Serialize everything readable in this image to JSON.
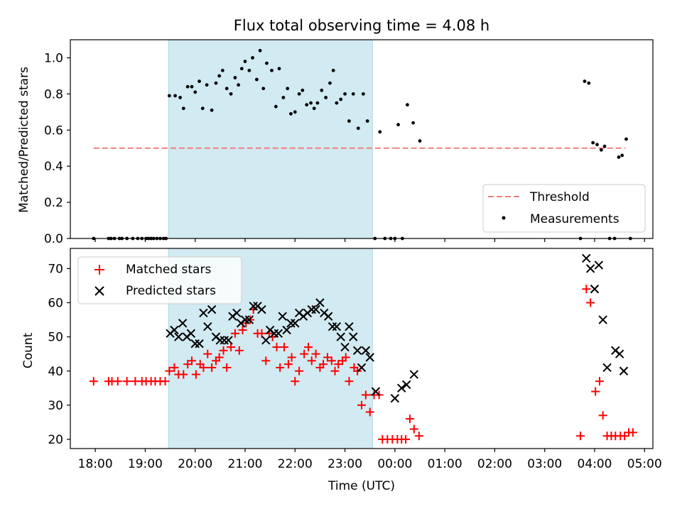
{
  "chart_data": [
    {
      "type": "scatter",
      "title": "Flux total observing time = 4.08 h",
      "xlabel": "",
      "ylabel": "Matched/Predicted stars",
      "xlim": [
        "17:30",
        "05:10"
      ],
      "ylim": [
        0,
        1.1
      ],
      "x_ticks": [
        "18:00",
        "19:00",
        "20:00",
        "21:00",
        "22:00",
        "23:00",
        "00:00",
        "01:00",
        "02:00",
        "03:00",
        "04:00",
        "05:00"
      ],
      "y_ticks": [
        "0.0",
        "0.2",
        "0.4",
        "0.6",
        "0.8",
        "1.0"
      ],
      "y_tick_values": [
        0,
        0.2,
        0.4,
        0.6,
        0.8,
        1.0
      ],
      "shaded_interval": [
        "19:28",
        "23:33"
      ],
      "shade_color": "#add8e6",
      "threshold": {
        "name": "Threshold",
        "value": 0.5,
        "x": [
          "17:58",
          "23:59",
          "04:37"
        ],
        "color": "#f08080"
      },
      "legend": {
        "position": "lower right",
        "entries": [
          "Threshold",
          "Measurements"
        ]
      },
      "series": [
        {
          "name": "Measurements",
          "marker": "dot",
          "color": "#000000",
          "points": [
            [
              "17:58",
              0.0
            ],
            [
              "18:16",
              0.0
            ],
            [
              "18:19",
              0.0
            ],
            [
              "18:23",
              0.0
            ],
            [
              "18:29",
              0.0
            ],
            [
              "18:32",
              0.0
            ],
            [
              "18:38",
              0.0
            ],
            [
              "18:45",
              0.0
            ],
            [
              "18:51",
              0.0
            ],
            [
              "18:56",
              0.0
            ],
            [
              "19:01",
              0.0
            ],
            [
              "19:04",
              0.0
            ],
            [
              "19:07",
              0.0
            ],
            [
              "19:10",
              0.0
            ],
            [
              "19:14",
              0.0
            ],
            [
              "19:18",
              0.0
            ],
            [
              "19:22",
              0.0
            ],
            [
              "19:25",
              0.0
            ],
            [
              "19:29",
              0.79
            ],
            [
              "19:36",
              0.79
            ],
            [
              "19:42",
              0.78
            ],
            [
              "19:46",
              0.72
            ],
            [
              "19:51",
              0.84
            ],
            [
              "19:56",
              0.84
            ],
            [
              "20:00",
              0.81
            ],
            [
              "20:05",
              0.87
            ],
            [
              "20:09",
              0.72
            ],
            [
              "20:14",
              0.85
            ],
            [
              "20:20",
              0.71
            ],
            [
              "20:25",
              0.86
            ],
            [
              "20:29",
              0.9
            ],
            [
              "20:33",
              0.93
            ],
            [
              "20:38",
              0.83
            ],
            [
              "20:43",
              0.8
            ],
            [
              "20:48",
              0.89
            ],
            [
              "20:52",
              0.85
            ],
            [
              "20:56",
              0.94
            ],
            [
              "21:00",
              0.98
            ],
            [
              "21:05",
              0.93
            ],
            [
              "21:09",
              1.0
            ],
            [
              "21:14",
              0.88
            ],
            [
              "21:18",
              1.04
            ],
            [
              "21:22",
              0.83
            ],
            [
              "21:26",
              0.97
            ],
            [
              "21:32",
              0.93
            ],
            [
              "21:37",
              0.73
            ],
            [
              "21:41",
              0.94
            ],
            [
              "21:46",
              0.78
            ],
            [
              "21:51",
              0.83
            ],
            [
              "21:55",
              0.69
            ],
            [
              "22:00",
              0.7
            ],
            [
              "22:05",
              0.8
            ],
            [
              "22:09",
              0.82
            ],
            [
              "22:14",
              0.74
            ],
            [
              "22:19",
              0.75
            ],
            [
              "22:23",
              0.72
            ],
            [
              "22:27",
              0.75
            ],
            [
              "22:32",
              0.82
            ],
            [
              "22:37",
              0.78
            ],
            [
              "22:42",
              0.86
            ],
            [
              "22:46",
              0.93
            ],
            [
              "22:50",
              0.75
            ],
            [
              "22:55",
              0.77
            ],
            [
              "23:00",
              0.8
            ],
            [
              "23:05",
              0.65
            ],
            [
              "23:10",
              0.8
            ],
            [
              "23:16",
              0.61
            ],
            [
              "23:22",
              0.8
            ],
            [
              "23:27",
              0.65
            ],
            [
              "23:36",
              0.0
            ],
            [
              "23:42",
              0.59
            ],
            [
              "23:48",
              0.0
            ],
            [
              "23:55",
              0.0
            ],
            [
              "00:00",
              0.0
            ],
            [
              "00:04",
              0.63
            ],
            [
              "00:09",
              0.0
            ],
            [
              "00:15",
              0.74
            ],
            [
              "00:22",
              0.64
            ],
            [
              "00:30",
              0.54
            ],
            [
              "03:43",
              0.0
            ],
            [
              "03:48",
              0.87
            ],
            [
              "03:53",
              0.86
            ],
            [
              "03:58",
              0.53
            ],
            [
              "04:03",
              0.52
            ],
            [
              "04:08",
              0.49
            ],
            [
              "04:12",
              0.51
            ],
            [
              "04:18",
              0.0
            ],
            [
              "04:24",
              0.0
            ],
            [
              "04:29",
              0.45
            ],
            [
              "04:33",
              0.46
            ],
            [
              "04:38",
              0.55
            ],
            [
              "04:43",
              0.0
            ]
          ]
        }
      ]
    },
    {
      "type": "scatter",
      "title": "",
      "xlabel": "Time (UTC)",
      "ylabel": "Count",
      "xlim": [
        "17:30",
        "05:10"
      ],
      "ylim": [
        17.3,
        75.9
      ],
      "x_ticks": [
        "18:00",
        "19:00",
        "20:00",
        "21:00",
        "22:00",
        "23:00",
        "00:00",
        "01:00",
        "02:00",
        "03:00",
        "04:00",
        "05:00"
      ],
      "y_ticks": [
        "20",
        "30",
        "40",
        "50",
        "60",
        "70"
      ],
      "y_tick_values": [
        20,
        30,
        40,
        50,
        60,
        70
      ],
      "shaded_interval": [
        "19:28",
        "23:33"
      ],
      "shade_color": "#add8e6",
      "legend": {
        "position": "upper left",
        "entries": [
          "Matched stars",
          "Predicted stars"
        ]
      },
      "series": [
        {
          "name": "Matched stars",
          "marker": "plus",
          "color": "#ff0000",
          "points": [
            [
              "17:58",
              37
            ],
            [
              "18:16",
              37
            ],
            [
              "18:20",
              37
            ],
            [
              "18:27",
              37
            ],
            [
              "18:38",
              37
            ],
            [
              "18:48",
              37
            ],
            [
              "18:56",
              37
            ],
            [
              "19:01",
              37
            ],
            [
              "19:07",
              37
            ],
            [
              "19:12",
              37
            ],
            [
              "19:18",
              37
            ],
            [
              "19:24",
              37
            ],
            [
              "19:29",
              40
            ],
            [
              "19:35",
              41
            ],
            [
              "19:40",
              39
            ],
            [
              "19:46",
              39
            ],
            [
              "19:51",
              42
            ],
            [
              "19:56",
              43
            ],
            [
              "20:01",
              39
            ],
            [
              "20:06",
              42
            ],
            [
              "20:10",
              41
            ],
            [
              "20:15",
              45
            ],
            [
              "20:20",
              41
            ],
            [
              "20:25",
              43
            ],
            [
              "20:29",
              44
            ],
            [
              "20:34",
              46
            ],
            [
              "20:38",
              41
            ],
            [
              "20:43",
              47
            ],
            [
              "20:48",
              51
            ],
            [
              "20:53",
              46
            ],
            [
              "20:57",
              52
            ],
            [
              "21:01",
              54
            ],
            [
              "21:06",
              55
            ],
            [
              "21:10",
              58
            ],
            [
              "21:15",
              51
            ],
            [
              "21:20",
              51
            ],
            [
              "21:25",
              43
            ],
            [
              "21:29",
              51
            ],
            [
              "21:33",
              50
            ],
            [
              "21:38",
              47
            ],
            [
              "21:42",
              41
            ],
            [
              "21:47",
              47
            ],
            [
              "21:52",
              42
            ],
            [
              "21:56",
              44
            ],
            [
              "22:00",
              37
            ],
            [
              "22:05",
              40
            ],
            [
              "22:11",
              45
            ],
            [
              "22:16",
              47
            ],
            [
              "22:20",
              43
            ],
            [
              "22:25",
              45
            ],
            [
              "22:30",
              41
            ],
            [
              "22:34",
              42
            ],
            [
              "22:39",
              44
            ],
            [
              "22:44",
              43
            ],
            [
              "22:48",
              40
            ],
            [
              "22:52",
              42
            ],
            [
              "22:57",
              43
            ],
            [
              "23:01",
              44
            ],
            [
              "23:05",
              37
            ],
            [
              "23:11",
              41
            ],
            [
              "23:15",
              40
            ],
            [
              "23:20",
              30
            ],
            [
              "23:25",
              33
            ],
            [
              "23:30",
              28
            ],
            [
              "23:35",
              33
            ],
            [
              "23:41",
              33
            ],
            [
              "23:45",
              20
            ],
            [
              "23:51",
              20
            ],
            [
              "23:57",
              20
            ],
            [
              "00:03",
              20
            ],
            [
              "00:08",
              20
            ],
            [
              "00:13",
              20
            ],
            [
              "00:18",
              26
            ],
            [
              "00:23",
              23
            ],
            [
              "00:29",
              21
            ],
            [
              "03:43",
              21
            ],
            [
              "03:50",
              64
            ],
            [
              "03:55",
              60
            ],
            [
              "04:01",
              34
            ],
            [
              "04:06",
              37
            ],
            [
              "04:10",
              27
            ],
            [
              "04:15",
              21
            ],
            [
              "04:20",
              21
            ],
            [
              "04:25",
              21
            ],
            [
              "04:31",
              21
            ],
            [
              "04:36",
              21
            ],
            [
              "04:41",
              22
            ],
            [
              "04:46",
              22
            ]
          ]
        },
        {
          "name": "Predicted stars",
          "marker": "x",
          "color": "#000000",
          "points": [
            [
              "19:30",
              51
            ],
            [
              "19:35",
              52
            ],
            [
              "19:40",
              50
            ],
            [
              "19:45",
              54
            ],
            [
              "19:50",
              50
            ],
            [
              "19:55",
              51
            ],
            [
              "20:00",
              48
            ],
            [
              "20:05",
              48
            ],
            [
              "20:10",
              57
            ],
            [
              "20:15",
              53
            ],
            [
              "20:20",
              58
            ],
            [
              "20:25",
              50
            ],
            [
              "20:30",
              49
            ],
            [
              "20:35",
              49
            ],
            [
              "20:40",
              49
            ],
            [
              "20:45",
              56
            ],
            [
              "20:50",
              57
            ],
            [
              "20:55",
              54
            ],
            [
              "21:00",
              55
            ],
            [
              "21:05",
              55
            ],
            [
              "21:10",
              59
            ],
            [
              "21:15",
              59
            ],
            [
              "21:20",
              58
            ],
            [
              "21:25",
              49
            ],
            [
              "21:30",
              52
            ],
            [
              "21:35",
              51
            ],
            [
              "21:40",
              51
            ],
            [
              "21:45",
              56
            ],
            [
              "21:50",
              52
            ],
            [
              "21:55",
              54
            ],
            [
              "22:00",
              54
            ],
            [
              "22:05",
              57
            ],
            [
              "22:10",
              56
            ],
            [
              "22:15",
              57
            ],
            [
              "22:20",
              58
            ],
            [
              "22:25",
              58
            ],
            [
              "22:30",
              60
            ],
            [
              "22:35",
              57
            ],
            [
              "22:40",
              56
            ],
            [
              "22:45",
              53
            ],
            [
              "22:50",
              53
            ],
            [
              "22:55",
              50
            ],
            [
              "23:00",
              47
            ],
            [
              "23:05",
              53
            ],
            [
              "23:10",
              50
            ],
            [
              "23:15",
              46
            ],
            [
              "23:20",
              41
            ],
            [
              "23:25",
              46
            ],
            [
              "23:30",
              44
            ],
            [
              "23:37",
              34
            ],
            [
              "00:00",
              32
            ],
            [
              "00:08",
              35
            ],
            [
              "00:14",
              36
            ],
            [
              "00:23",
              39
            ],
            [
              "03:50",
              73
            ],
            [
              "03:55",
              70
            ],
            [
              "04:00",
              64
            ],
            [
              "04:05",
              71
            ],
            [
              "04:10",
              55
            ],
            [
              "04:15",
              41
            ],
            [
              "04:25",
              46
            ],
            [
              "04:30",
              45
            ],
            [
              "04:35",
              40
            ]
          ]
        }
      ]
    }
  ]
}
